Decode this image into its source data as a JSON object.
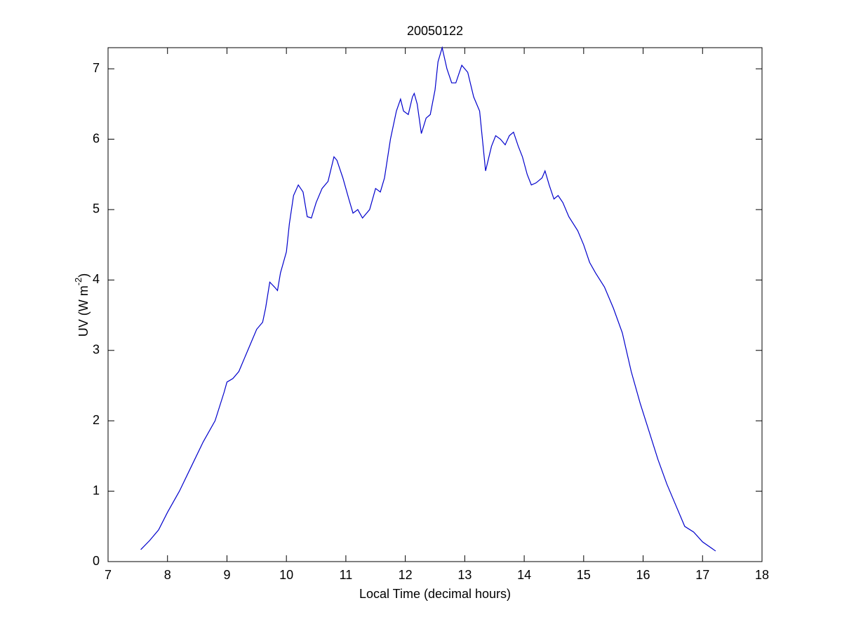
{
  "chart_data": {
    "type": "line",
    "title": "20050122",
    "xlabel": "Local Time (decimal hours)",
    "ylabel": {
      "text": "UV (W m",
      "superscript": "-2",
      "end": ")"
    },
    "xlim": [
      7,
      18
    ],
    "xticks": [
      7,
      8,
      9,
      10,
      11,
      12,
      13,
      14,
      15,
      16,
      17,
      18
    ],
    "ylim": [
      0,
      7.3
    ],
    "yticks": [
      0,
      1,
      2,
      3,
      4,
      5,
      6,
      7
    ],
    "grid": false,
    "series": [
      {
        "color": "#0000cc",
        "x": [
          7.55,
          7.7,
          7.85,
          8.0,
          8.2,
          8.4,
          8.6,
          8.8,
          8.95,
          9.0,
          9.1,
          9.2,
          9.3,
          9.4,
          9.5,
          9.6,
          9.65,
          9.72,
          9.8,
          9.85,
          9.9,
          10.0,
          10.05,
          10.12,
          10.2,
          10.28,
          10.35,
          10.42,
          10.5,
          10.6,
          10.7,
          10.8,
          10.85,
          10.95,
          11.05,
          11.12,
          11.2,
          11.28,
          11.4,
          11.5,
          11.58,
          11.65,
          11.75,
          11.85,
          11.92,
          11.97,
          12.05,
          12.12,
          12.15,
          12.2,
          12.27,
          12.35,
          12.42,
          12.5,
          12.55,
          12.62,
          12.7,
          12.78,
          12.85,
          12.95,
          13.05,
          13.15,
          13.25,
          13.35,
          13.45,
          13.52,
          13.6,
          13.68,
          13.75,
          13.82,
          13.9,
          13.97,
          14.05,
          14.12,
          14.2,
          14.3,
          14.35,
          14.42,
          14.5,
          14.57,
          14.65,
          14.75,
          14.9,
          15.0,
          15.1,
          15.2,
          15.35,
          15.5,
          15.65,
          15.8,
          15.95,
          16.1,
          16.25,
          16.4,
          16.55,
          16.7,
          16.85,
          17.0,
          17.22
        ],
        "values": [
          0.17,
          0.3,
          0.45,
          0.7,
          1.0,
          1.35,
          1.7,
          2.0,
          2.4,
          2.55,
          2.6,
          2.7,
          2.9,
          3.1,
          3.3,
          3.4,
          3.6,
          3.97,
          3.9,
          3.85,
          4.1,
          4.4,
          4.8,
          5.2,
          5.35,
          5.25,
          4.9,
          4.88,
          5.1,
          5.3,
          5.4,
          5.75,
          5.7,
          5.45,
          5.15,
          4.95,
          5.0,
          4.88,
          5.0,
          5.3,
          5.25,
          5.45,
          6.0,
          6.4,
          6.57,
          6.4,
          6.35,
          6.6,
          6.65,
          6.5,
          6.08,
          6.3,
          6.35,
          6.7,
          7.1,
          7.3,
          7.0,
          6.8,
          6.8,
          7.05,
          6.95,
          6.6,
          6.4,
          5.55,
          5.9,
          6.05,
          6.0,
          5.92,
          6.05,
          6.1,
          5.9,
          5.75,
          5.5,
          5.35,
          5.38,
          5.45,
          5.55,
          5.35,
          5.15,
          5.2,
          5.1,
          4.9,
          4.7,
          4.5,
          4.25,
          4.1,
          3.9,
          3.6,
          3.25,
          2.7,
          2.25,
          1.85,
          1.45,
          1.1,
          0.8,
          0.5,
          0.42,
          0.28,
          0.15
        ]
      }
    ]
  }
}
